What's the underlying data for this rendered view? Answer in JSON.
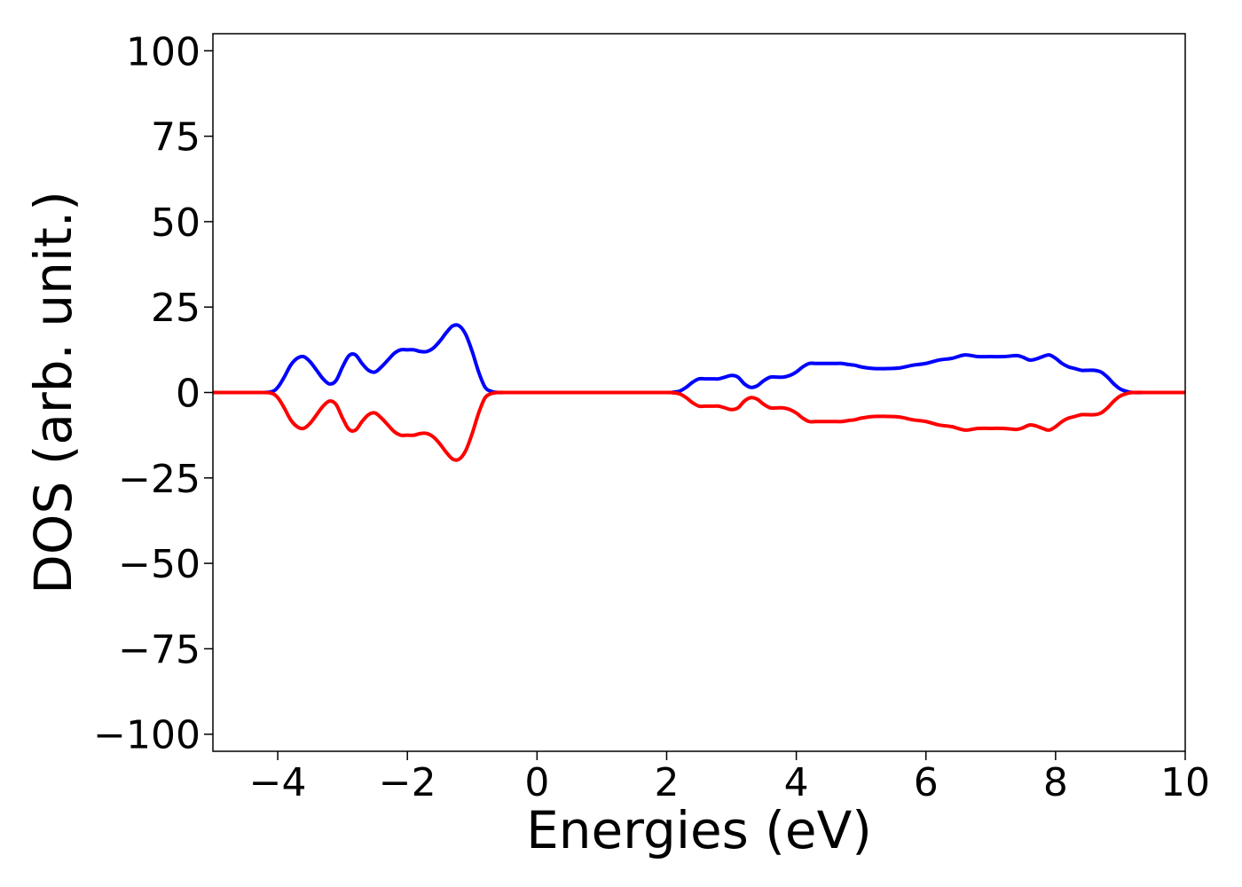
{
  "chart_data": {
    "type": "line",
    "title": "",
    "xlabel": "Energies (eV)",
    "ylabel": "DOS (arb. unit.)",
    "xlim": [
      -5,
      10
    ],
    "ylim": [
      -105,
      105
    ],
    "x_ticks": [
      -4,
      -2,
      0,
      2,
      4,
      6,
      8,
      10
    ],
    "x_tick_labels": [
      "−4",
      "−2",
      "0",
      "2",
      "4",
      "6",
      "8",
      "10"
    ],
    "y_ticks": [
      100,
      75,
      50,
      25,
      0,
      -25,
      -50,
      -75,
      -100
    ],
    "y_tick_labels": [
      "100",
      "75",
      "50",
      "25",
      "0",
      "−25",
      "−50",
      "−75",
      "−100"
    ],
    "grid": false,
    "series": [
      {
        "color": "#0000ff",
        "x": [
          -5,
          -4.3,
          -4.1,
          -4.0,
          -3.9,
          -3.8,
          -3.7,
          -3.6,
          -3.5,
          -3.4,
          -3.3,
          -3.2,
          -3.1,
          -3.0,
          -2.9,
          -2.8,
          -2.7,
          -2.6,
          -2.5,
          -2.4,
          -2.3,
          -2.2,
          -2.1,
          -2.0,
          -1.9,
          -1.8,
          -1.7,
          -1.6,
          -1.5,
          -1.4,
          -1.3,
          -1.2,
          -1.1,
          -1.0,
          -0.9,
          -0.8,
          -0.7,
          -0.6,
          -0.5,
          0,
          1,
          2.0,
          2.1,
          2.2,
          2.3,
          2.4,
          2.5,
          2.6,
          2.7,
          2.8,
          2.9,
          3.0,
          3.1,
          3.2,
          3.3,
          3.4,
          3.5,
          3.6,
          3.7,
          3.8,
          3.9,
          4.0,
          4.1,
          4.2,
          4.3,
          4.4,
          4.5,
          4.6,
          4.7,
          4.8,
          4.9,
          5.0,
          5.2,
          5.4,
          5.6,
          5.8,
          6.0,
          6.2,
          6.4,
          6.6,
          6.8,
          7.0,
          7.2,
          7.4,
          7.5,
          7.6,
          7.7,
          7.8,
          7.9,
          8.0,
          8.1,
          8.2,
          8.3,
          8.4,
          8.5,
          8.6,
          8.7,
          8.8,
          8.9,
          9.0,
          9.1,
          9.2,
          9.5,
          10
        ],
        "y": [
          0,
          0,
          0.2,
          1.5,
          4.5,
          8,
          10,
          10.5,
          9,
          6.5,
          4,
          2.5,
          3.5,
          7.5,
          10.8,
          11,
          8.5,
          6.5,
          6,
          7.5,
          9.5,
          11.5,
          12.5,
          12.5,
          12.5,
          12,
          12,
          13,
          15,
          17.5,
          19.5,
          19.5,
          17,
          12,
          6,
          1.5,
          0.3,
          0,
          0,
          0,
          0,
          0,
          0.1,
          0.4,
          1.5,
          3,
          4,
          4,
          4,
          4,
          4.5,
          5,
          4.5,
          2.5,
          1.5,
          2,
          3.5,
          4.5,
          4.5,
          4.5,
          5,
          6,
          7.5,
          8.5,
          8.5,
          8.5,
          8.5,
          8.5,
          8.5,
          8.2,
          8,
          7.5,
          7,
          7,
          7.2,
          8,
          8.5,
          9.5,
          10,
          11,
          10.5,
          10.5,
          10.5,
          10.8,
          10.3,
          9.5,
          9.8,
          10.5,
          11,
          10,
          8.5,
          7.5,
          7,
          6.5,
          6.5,
          6.5,
          6,
          4.5,
          2.5,
          1,
          0.3,
          0,
          0,
          0
        ],
        "stroke_width": 4
      },
      {
        "color": "#ff0000",
        "x": [
          -5,
          -4.3,
          -4.1,
          -4.0,
          -3.9,
          -3.8,
          -3.7,
          -3.6,
          -3.5,
          -3.4,
          -3.3,
          -3.2,
          -3.1,
          -3.0,
          -2.9,
          -2.8,
          -2.7,
          -2.6,
          -2.5,
          -2.4,
          -2.3,
          -2.2,
          -2.1,
          -2.0,
          -1.9,
          -1.8,
          -1.7,
          -1.6,
          -1.5,
          -1.4,
          -1.3,
          -1.2,
          -1.1,
          -1.0,
          -0.9,
          -0.8,
          -0.7,
          -0.6,
          -0.5,
          0,
          1,
          2.0,
          2.1,
          2.2,
          2.3,
          2.4,
          2.5,
          2.6,
          2.7,
          2.8,
          2.9,
          3.0,
          3.1,
          3.2,
          3.3,
          3.4,
          3.5,
          3.6,
          3.7,
          3.8,
          3.9,
          4.0,
          4.1,
          4.2,
          4.3,
          4.4,
          4.5,
          4.6,
          4.7,
          4.8,
          4.9,
          5.0,
          5.2,
          5.4,
          5.6,
          5.8,
          6.0,
          6.2,
          6.4,
          6.6,
          6.8,
          7.0,
          7.2,
          7.4,
          7.5,
          7.6,
          7.7,
          7.8,
          7.9,
          8.0,
          8.1,
          8.2,
          8.3,
          8.4,
          8.5,
          8.6,
          8.7,
          8.8,
          8.9,
          9.0,
          9.1,
          9.2,
          9.5,
          10
        ],
        "y": [
          0,
          0,
          -0.2,
          -1.5,
          -4.5,
          -8,
          -10,
          -10.5,
          -9,
          -6.5,
          -4,
          -2.5,
          -3.5,
          -7.5,
          -10.8,
          -11,
          -8.5,
          -6.5,
          -6,
          -7.5,
          -9.5,
          -11.5,
          -12.5,
          -12.5,
          -12.5,
          -12,
          -12,
          -13,
          -15,
          -17.5,
          -19.5,
          -19.5,
          -17,
          -12,
          -6,
          -1.5,
          -0.3,
          0,
          0,
          0,
          0,
          0,
          -0.1,
          -0.4,
          -1.5,
          -3,
          -4,
          -4,
          -4,
          -4,
          -4.5,
          -5,
          -4.5,
          -2.5,
          -1.5,
          -2,
          -3.5,
          -4.5,
          -4.5,
          -4.5,
          -5,
          -6,
          -7.5,
          -8.5,
          -8.5,
          -8.5,
          -8.5,
          -8.5,
          -8.5,
          -8.2,
          -8,
          -7.5,
          -7,
          -7,
          -7.2,
          -8,
          -8.5,
          -9.5,
          -10,
          -11,
          -10.5,
          -10.5,
          -10.5,
          -10.8,
          -10.3,
          -9.5,
          -9.8,
          -10.5,
          -11,
          -10,
          -8.5,
          -7.5,
          -7,
          -6.5,
          -6.5,
          -6.5,
          -6,
          -4.5,
          -2.5,
          -1,
          -0.3,
          0,
          0,
          0
        ],
        "stroke_width": 4
      }
    ]
  }
}
